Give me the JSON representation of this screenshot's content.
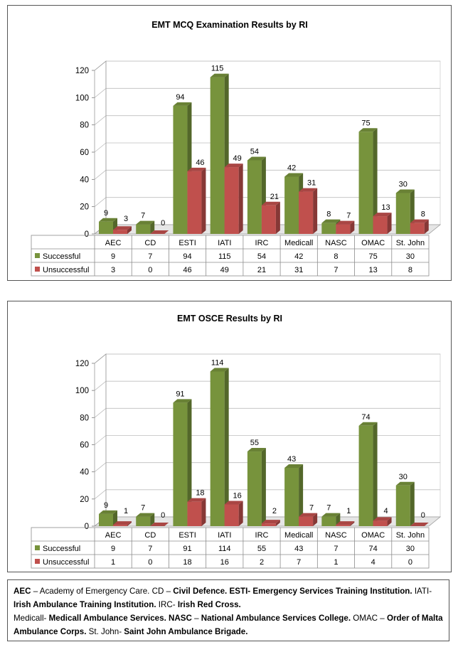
{
  "chart_data": [
    {
      "type": "bar",
      "title": "EMT MCQ Examination Results by RI",
      "categories": [
        "AEC",
        "CD",
        "ESTI",
        "IATI",
        "IRC",
        "Medicall",
        "NASC",
        "OMAC",
        "St. John"
      ],
      "series": [
        {
          "name": "Successful",
          "values": [
            9,
            7,
            94,
            115,
            54,
            42,
            8,
            75,
            30
          ],
          "color": "#77933c"
        },
        {
          "name": "Unsuccessful",
          "values": [
            3,
            0,
            46,
            49,
            21,
            31,
            7,
            13,
            8
          ],
          "color": "#c0504d"
        }
      ],
      "ylim": [
        0,
        120
      ],
      "yticks": [
        0,
        20,
        40,
        60,
        80,
        100,
        120
      ],
      "grid": true,
      "legend": "data-table"
    },
    {
      "type": "bar",
      "title": "EMT OSCE Results by RI",
      "categories": [
        "AEC",
        "CD",
        "ESTI",
        "IATI",
        "IRC",
        "Medicall",
        "NASC",
        "OMAC",
        "St. John"
      ],
      "series": [
        {
          "name": "Successful",
          "values": [
            9,
            7,
            91,
            114,
            55,
            43,
            7,
            74,
            30
          ],
          "color": "#77933c"
        },
        {
          "name": "Unsuccessful",
          "values": [
            1,
            0,
            18,
            16,
            2,
            7,
            1,
            4,
            0
          ],
          "color": "#c0504d"
        }
      ],
      "ylim": [
        0,
        120
      ],
      "yticks": [
        0,
        20,
        40,
        60,
        80,
        100,
        120
      ],
      "grid": true,
      "legend": "data-table"
    }
  ],
  "footnote": [
    [
      {
        "t": "AEC",
        "b": true
      },
      {
        "t": " – Academy of Emergency Care.  CD – ",
        "b": false
      },
      {
        "t": "Civil Defence.",
        "b": true
      },
      {
        "t": "   ",
        "b": false
      },
      {
        "t": "ESTI- Emergency Services Training Institution.",
        "b": true
      },
      {
        "t": " IATI-",
        "b": false
      }
    ],
    [
      {
        "t": "Irish Ambulance Training Institution.",
        "b": true
      },
      {
        "t": "  IRC- ",
        "b": false
      },
      {
        "t": "Irish Red Cross.",
        "b": true
      }
    ],
    [
      {
        "t": "Medicall- ",
        "b": false
      },
      {
        "t": "Medicall Ambulance Services.",
        "b": true
      },
      {
        "t": " ",
        "b": false
      },
      {
        "t": "NASC",
        "b": true
      },
      {
        "t": " – ",
        "b": false
      },
      {
        "t": "National Ambulance Services College.",
        "b": true
      },
      {
        "t": " OMAC – ",
        "b": false
      },
      {
        "t": "Order of Malta",
        "b": true
      }
    ],
    [
      {
        "t": "Ambulance Corps.",
        "b": true
      },
      {
        "t": "  St. John- ",
        "b": false
      },
      {
        "t": "Saint John Ambulance Brigade.",
        "b": true
      }
    ]
  ]
}
